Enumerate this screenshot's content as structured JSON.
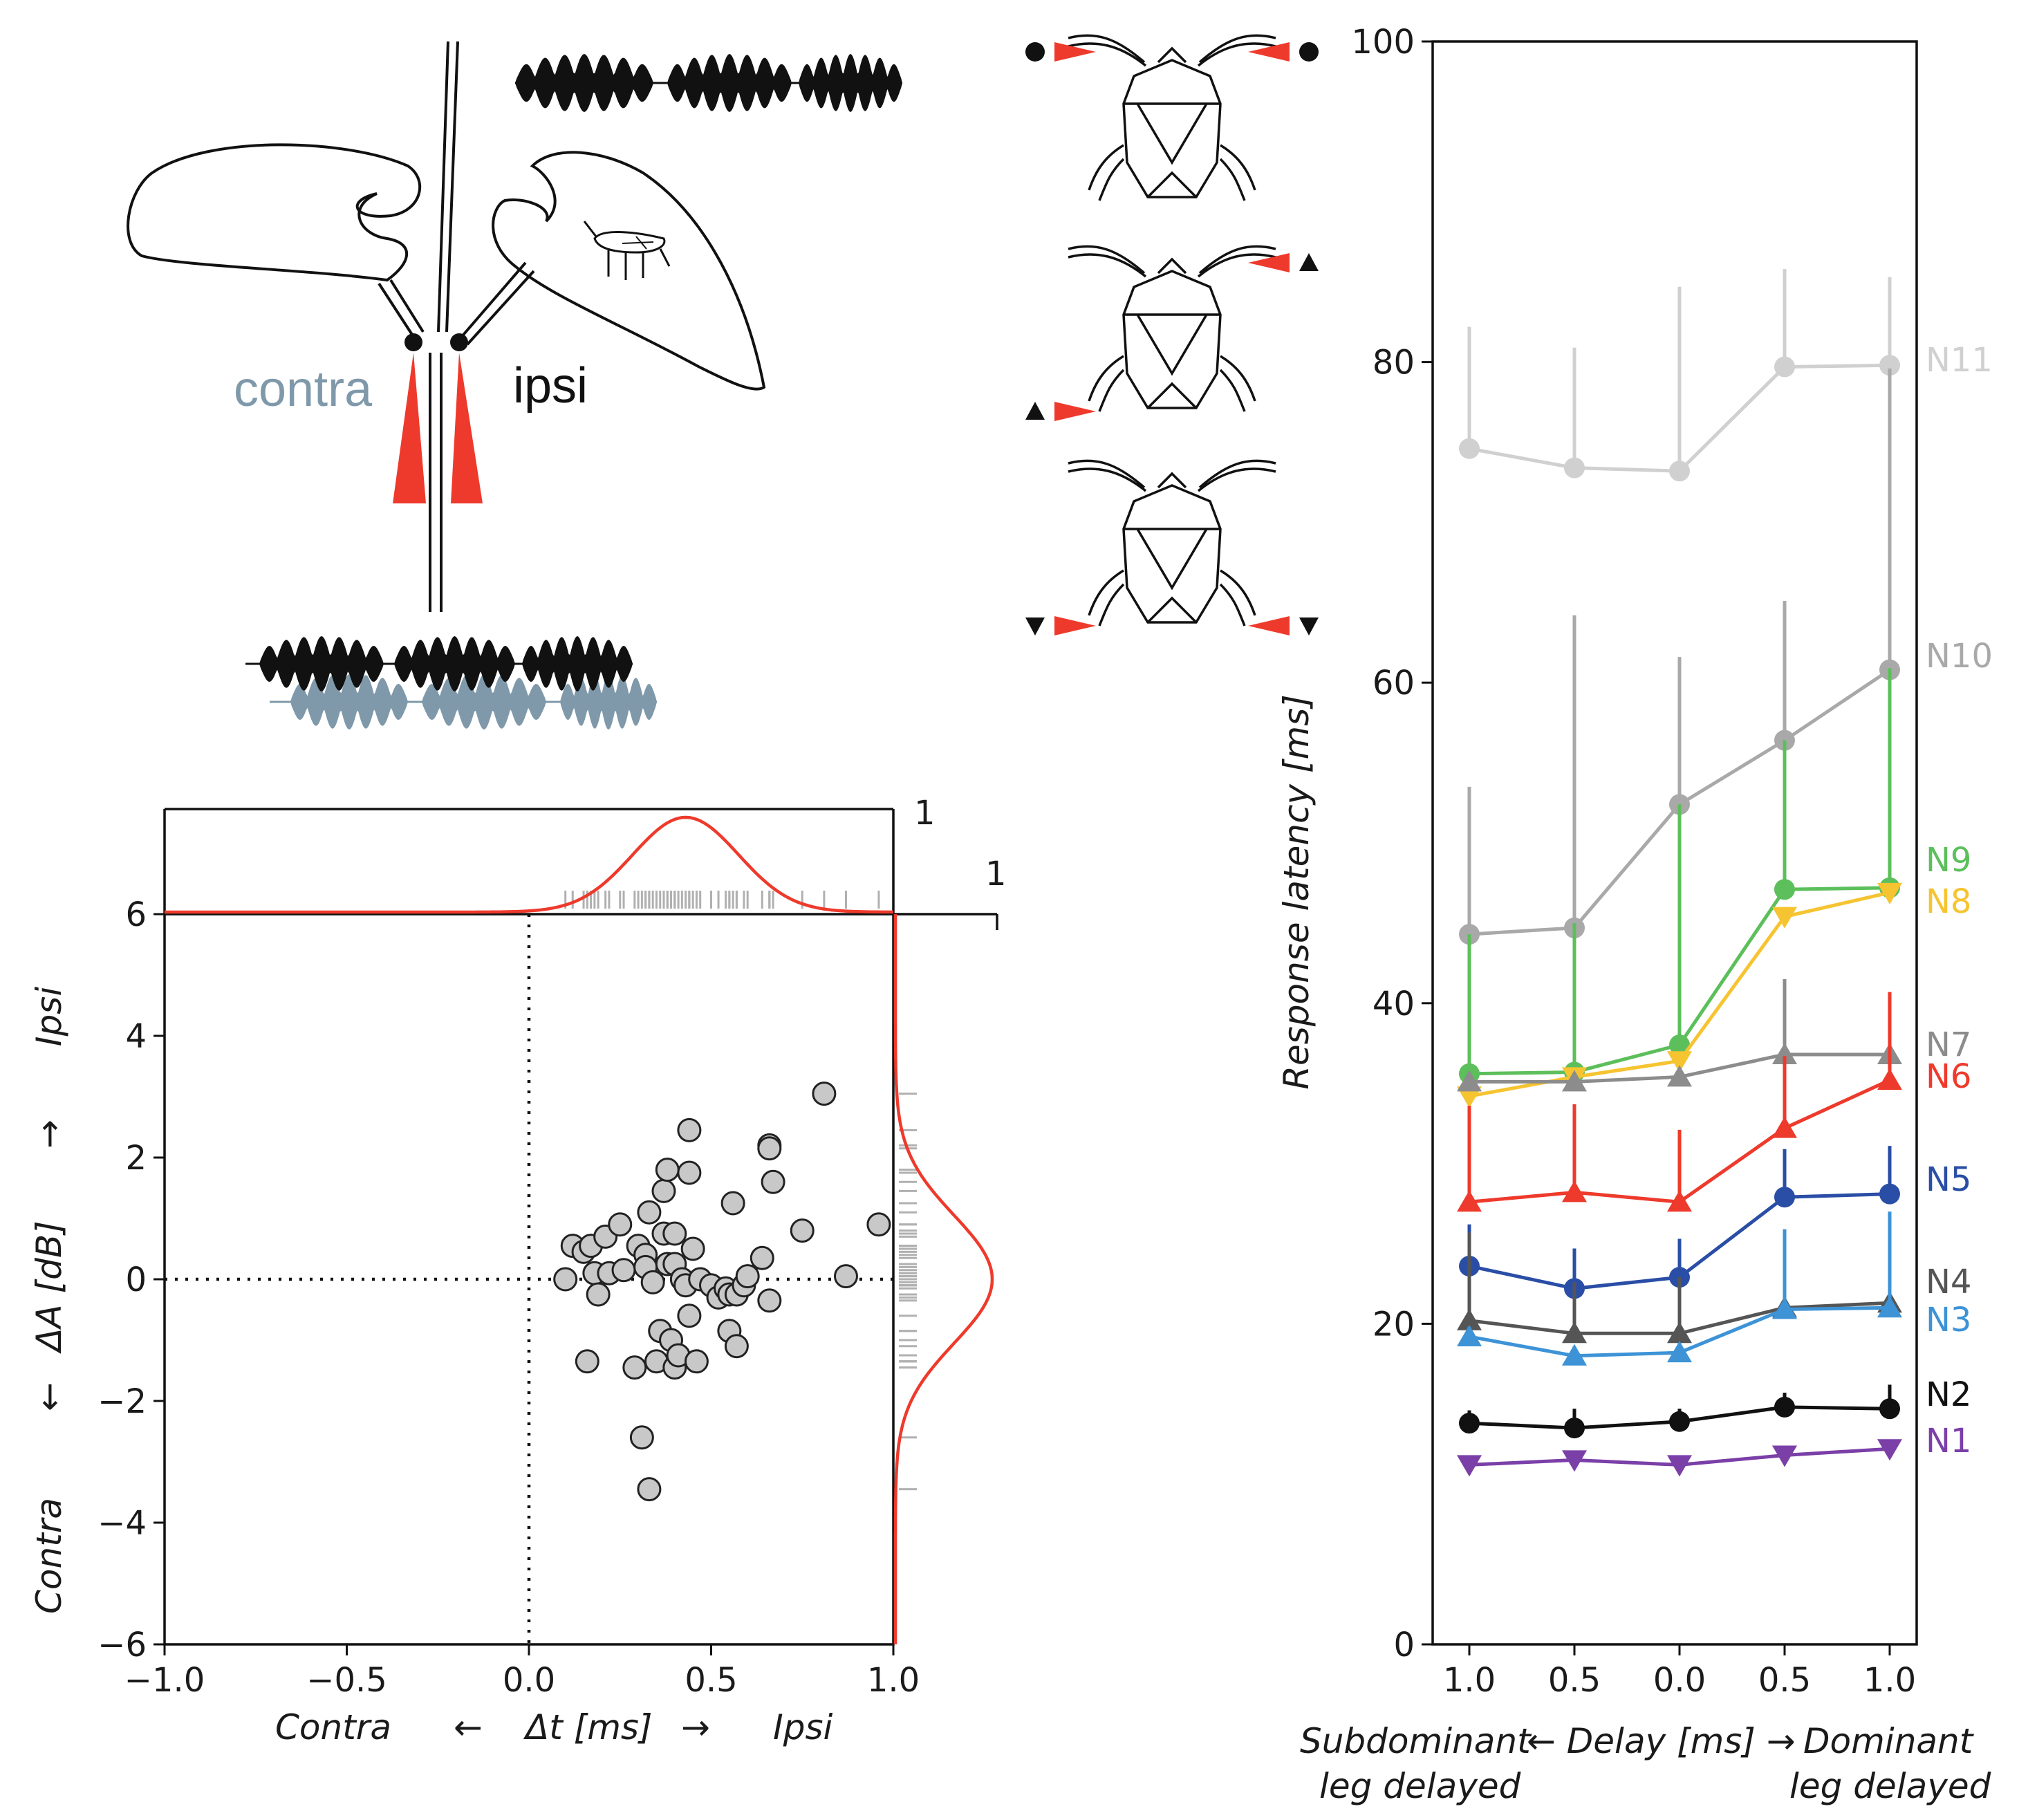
{
  "colors": {
    "red": "#ee3a2c",
    "black": "#111111",
    "blue_grey": "#7f99aa",
    "N1": "#7b3fa8",
    "N2": "#111111",
    "N3": "#3d93d6",
    "N4": "#555555",
    "N5": "#2a4ea6",
    "N6": "#ee3a2c",
    "N7": "#8c8c8c",
    "N8": "#f6c431",
    "N9": "#5cbf5b",
    "N10": "#a9a9a9",
    "N11": "#d0d0d0",
    "scatter_fill": "#c8c8c8",
    "rug": "#b0b0b0"
  },
  "schematic": {
    "contra_label": "contra",
    "ipsi_label": "ipsi"
  },
  "chart_data": [
    {
      "type": "scatter",
      "title": "",
      "xlabel": {
        "left": "Contra",
        "arrow_left": "←",
        "middle": "Δt [ms]",
        "arrow_right": "→",
        "right": "Ipsi"
      },
      "ylabel": {
        "bottom": "Contra",
        "arrow_down": "←",
        "middle": "ΔA [dB]",
        "arrow_up": "→",
        "top": "Ipsi"
      },
      "xlim": [
        -1.0,
        1.0
      ],
      "ylim": [
        -6,
        6
      ],
      "xticks": [
        -1.0,
        -0.5,
        0.0,
        0.5,
        1.0
      ],
      "xtick_labels": [
        "−1.0",
        "−0.5",
        "0.0",
        "0.5",
        "1.0"
      ],
      "yticks": [
        -6,
        -4,
        -2,
        0,
        2,
        4,
        6
      ],
      "ytick_labels": [
        "−6",
        "−4",
        "−2",
        "0",
        "2",
        "4",
        "6"
      ],
      "marginal_top_label": "1",
      "marginal_right_label": "1",
      "marginal_top_fit": {
        "type": "gaussian",
        "mean": 0.43,
        "sd": 0.145
      },
      "marginal_right_fit": {
        "type": "gaussian",
        "mean": 0.0,
        "sd": 1.05
      },
      "points": [
        [
          0.1,
          0.0
        ],
        [
          0.12,
          0.55
        ],
        [
          0.15,
          0.45
        ],
        [
          0.16,
          -1.35
        ],
        [
          0.17,
          0.55
        ],
        [
          0.18,
          0.1
        ],
        [
          0.19,
          -0.25
        ],
        [
          0.21,
          0.7
        ],
        [
          0.22,
          0.1
        ],
        [
          0.25,
          0.9
        ],
        [
          0.26,
          0.15
        ],
        [
          0.29,
          -1.45
        ],
        [
          0.3,
          0.55
        ],
        [
          0.31,
          -2.6
        ],
        [
          0.32,
          0.4
        ],
        [
          0.32,
          0.2
        ],
        [
          0.33,
          -3.45
        ],
        [
          0.33,
          1.1
        ],
        [
          0.34,
          -0.05
        ],
        [
          0.35,
          -1.35
        ],
        [
          0.36,
          -0.85
        ],
        [
          0.37,
          1.45
        ],
        [
          0.37,
          0.75
        ],
        [
          0.38,
          1.8
        ],
        [
          0.38,
          0.25
        ],
        [
          0.39,
          -1.0
        ],
        [
          0.4,
          -1.45
        ],
        [
          0.4,
          0.75
        ],
        [
          0.4,
          0.25
        ],
        [
          0.41,
          -1.25
        ],
        [
          0.42,
          0.0
        ],
        [
          0.43,
          -0.1
        ],
        [
          0.44,
          1.75
        ],
        [
          0.44,
          2.45
        ],
        [
          0.44,
          -0.6
        ],
        [
          0.45,
          0.5
        ],
        [
          0.46,
          -1.35
        ],
        [
          0.47,
          0.0
        ],
        [
          0.5,
          -0.1
        ],
        [
          0.52,
          -0.3
        ],
        [
          0.54,
          -0.15
        ],
        [
          0.55,
          -0.25
        ],
        [
          0.55,
          -0.85
        ],
        [
          0.56,
          1.25
        ],
        [
          0.57,
          -1.1
        ],
        [
          0.57,
          -0.25
        ],
        [
          0.59,
          -0.1
        ],
        [
          0.6,
          0.05
        ],
        [
          0.64,
          0.35
        ],
        [
          0.66,
          -0.35
        ],
        [
          0.66,
          2.2
        ],
        [
          0.66,
          2.15
        ],
        [
          0.67,
          1.6
        ],
        [
          0.75,
          0.8
        ],
        [
          0.81,
          3.05
        ],
        [
          0.87,
          0.05
        ],
        [
          0.96,
          0.9
        ]
      ]
    },
    {
      "type": "line",
      "title": "",
      "ylabel": "Response latency [ms]",
      "xlabel_left": "Subdominant",
      "xlabel_left2": "leg delayed",
      "xlabel_middle": "← Delay [ms] →",
      "xlabel_right": "Dominant",
      "xlabel_right2": "leg delayed",
      "ylim": [
        0,
        100
      ],
      "yticks": [
        0,
        20,
        40,
        60,
        80,
        100
      ],
      "categories": [
        "1.0",
        "0.5",
        "0.0",
        "0.5",
        "1.0"
      ],
      "series": [
        {
          "name": "N1",
          "marker": "triangle-down",
          "values": [
            11.2,
            11.5,
            11.2,
            11.8,
            12.2
          ],
          "err": [
            0.5,
            0.5,
            0.5,
            0.5,
            0.5
          ]
        },
        {
          "name": "N2",
          "marker": "circle",
          "values": [
            13.8,
            13.5,
            13.9,
            14.8,
            14.7
          ],
          "err": [
            0.8,
            1.2,
            0.8,
            0.9,
            1.5
          ]
        },
        {
          "name": "N3",
          "marker": "triangle-up",
          "values": [
            19.2,
            18.0,
            18.2,
            20.9,
            21.0
          ],
          "err": [
            0.6,
            0.6,
            0.6,
            5.0,
            6.0
          ]
        },
        {
          "name": "N4",
          "marker": "triangle-up",
          "values": [
            20.2,
            19.4,
            19.4,
            21.0,
            21.3
          ],
          "err": [
            5.5,
            3.2,
            3.5,
            4.0,
            3.0
          ]
        },
        {
          "name": "N5",
          "marker": "circle",
          "values": [
            23.6,
            22.2,
            22.9,
            27.9,
            28.1
          ],
          "err": [
            2.6,
            2.5,
            2.4,
            3.0,
            3.0
          ]
        },
        {
          "name": "N6",
          "marker": "triangle-up",
          "values": [
            27.6,
            28.2,
            27.6,
            32.2,
            35.2
          ],
          "err": [
            6.0,
            5.5,
            4.5,
            4.5,
            5.5
          ]
        },
        {
          "name": "N7",
          "marker": "triangle-up",
          "values": [
            35.1,
            35.1,
            35.4,
            36.8,
            36.8
          ],
          "err": [
            0.5,
            0.5,
            0.5,
            4.7,
            3.5
          ]
        },
        {
          "name": "N8",
          "marker": "triangle-down",
          "values": [
            34.2,
            35.4,
            36.4,
            45.4,
            46.9
          ],
          "err": [
            0.5,
            0.5,
            0.5,
            0.5,
            0.5
          ]
        },
        {
          "name": "N9",
          "marker": "circle",
          "values": [
            35.6,
            35.7,
            37.4,
            47.1,
            47.2
          ],
          "err": [
            8.7,
            9.3,
            15.0,
            9.3,
            13.7
          ]
        },
        {
          "name": "N10",
          "marker": "circle",
          "values": [
            44.3,
            44.7,
            52.4,
            56.4,
            60.8
          ],
          "err": [
            9.2,
            19.5,
            9.2,
            8.7,
            18.8
          ]
        },
        {
          "name": "N11",
          "marker": "circle",
          "values": [
            74.6,
            73.4,
            73.2,
            79.7,
            79.8
          ],
          "err": [
            7.6,
            7.5,
            11.5,
            6.1,
            5.5
          ]
        }
      ]
    }
  ]
}
